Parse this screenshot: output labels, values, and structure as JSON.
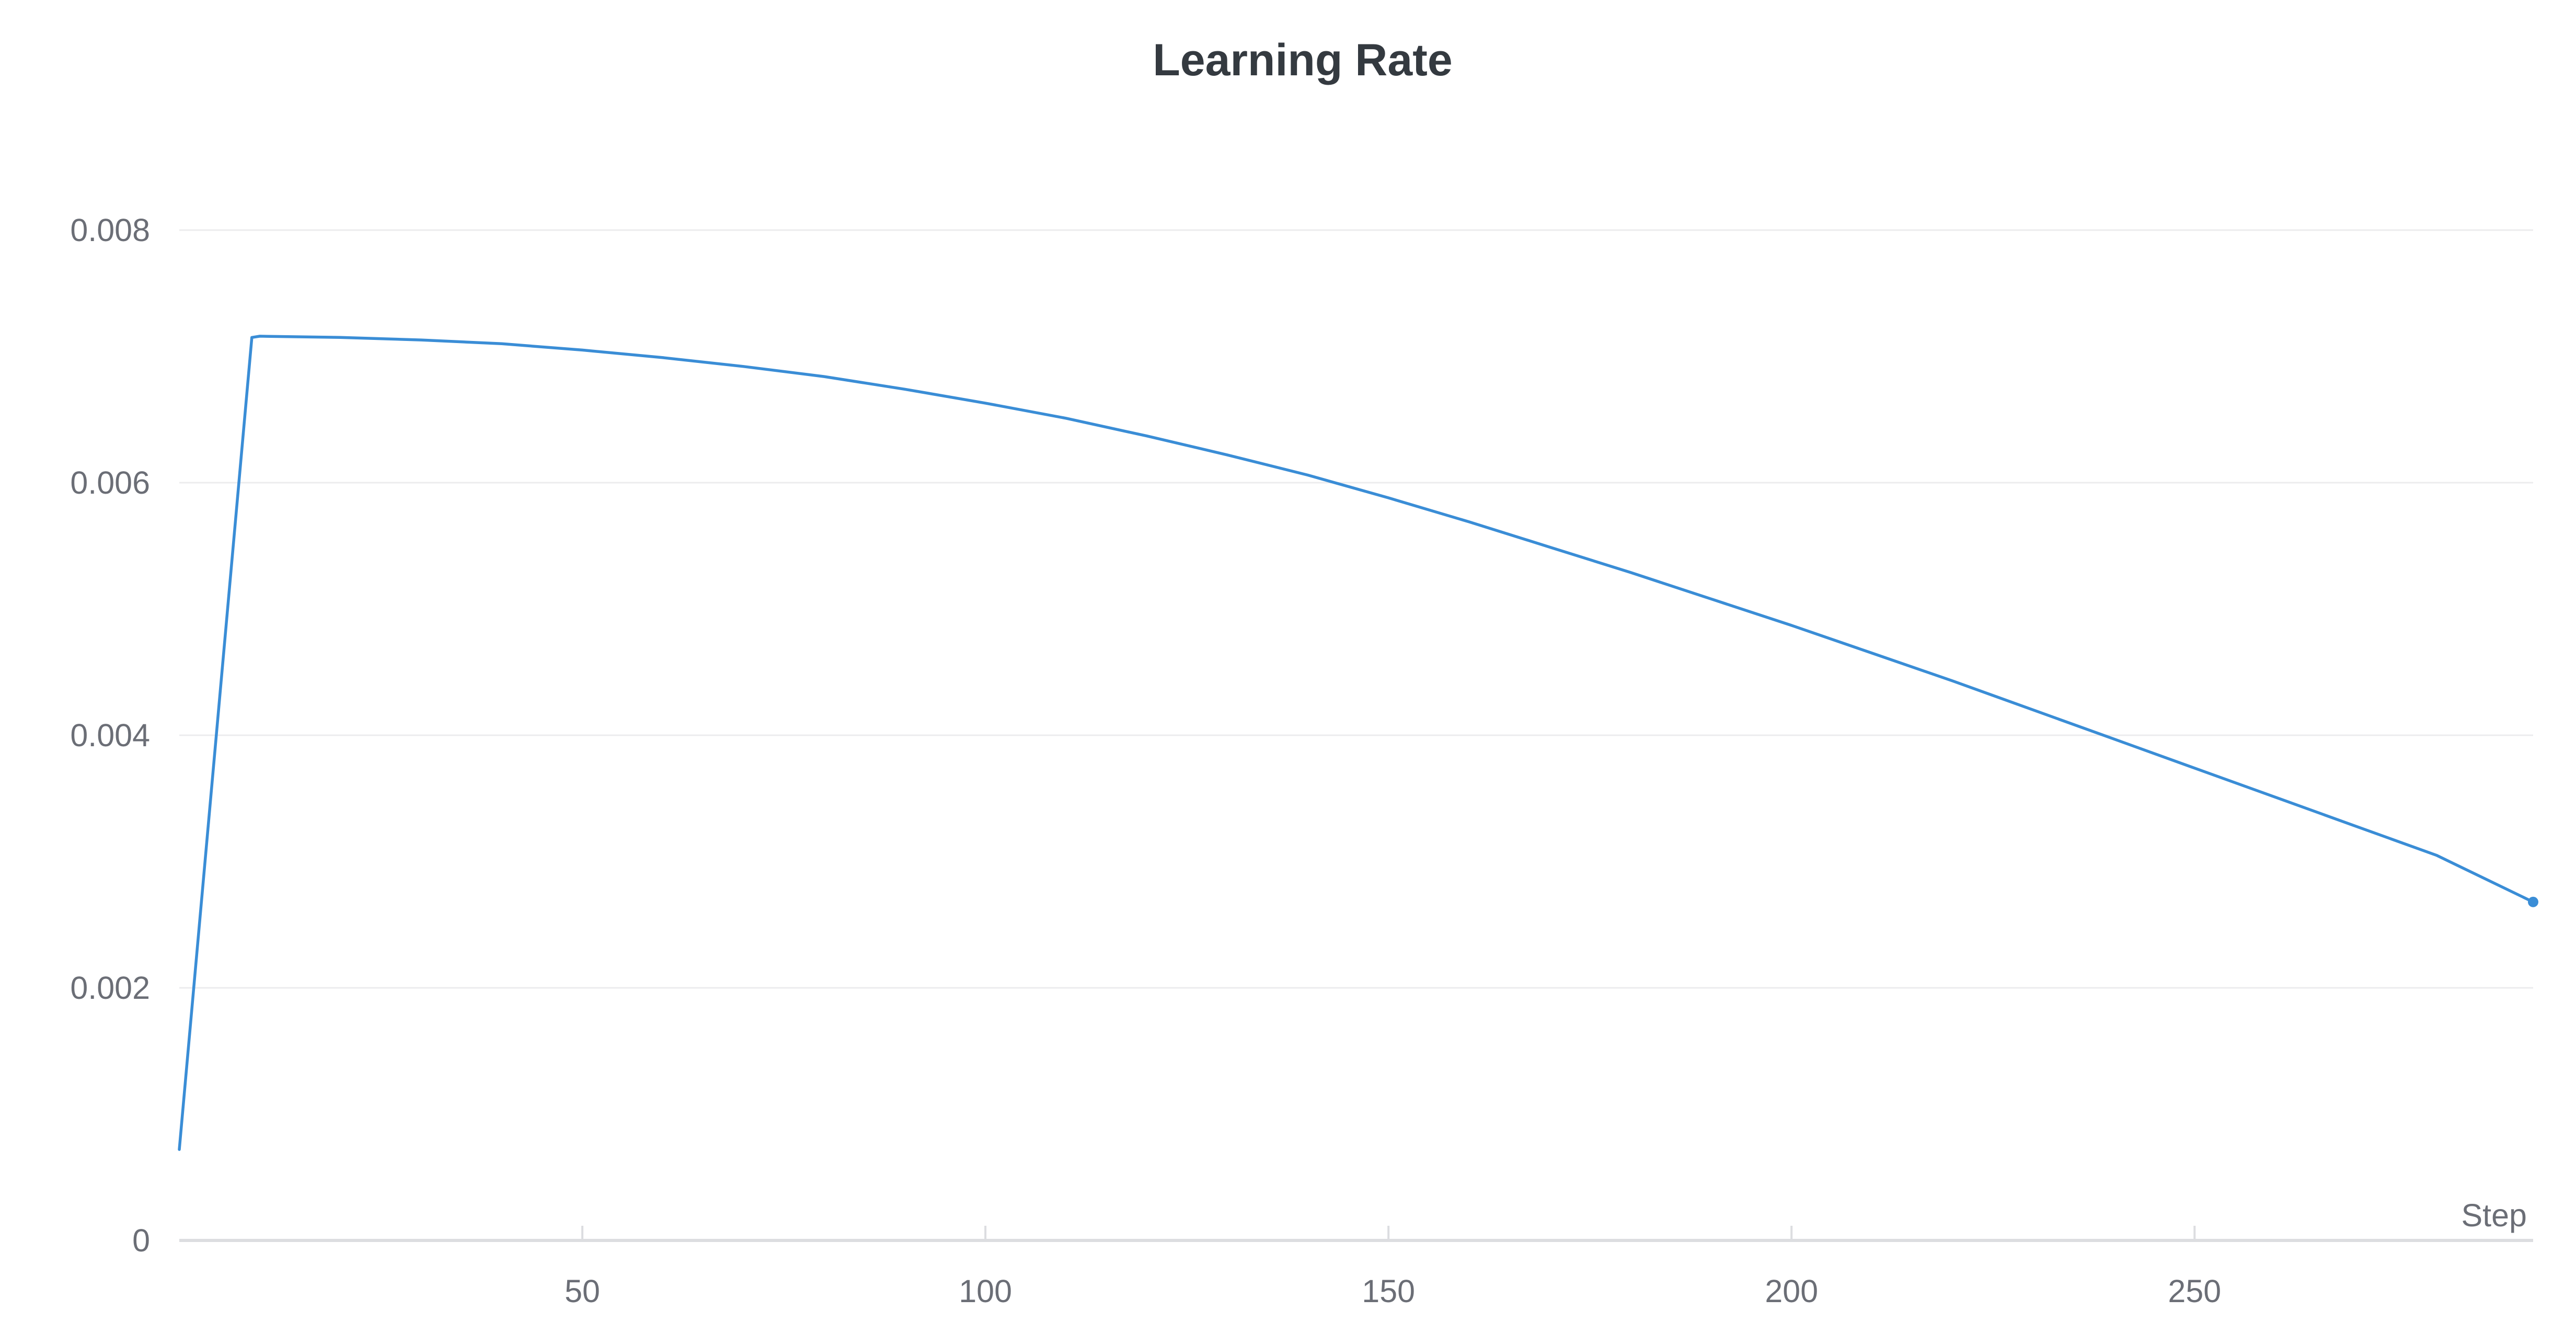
{
  "chart_data": {
    "type": "line",
    "title": "Learning Rate",
    "xlabel": "Step",
    "ylabel": "",
    "xlim": [
      0,
      292
    ],
    "ylim": [
      0,
      0.008
    ],
    "x_ticks": [
      50,
      100,
      150,
      200,
      250
    ],
    "x_tick_labels": [
      "50",
      "100",
      "150",
      "200",
      "250"
    ],
    "y_ticks": [
      0,
      0.002,
      0.004,
      0.006,
      0.008
    ],
    "y_tick_labels": [
      "0",
      "0.002",
      "0.004",
      "0.006",
      "0.008"
    ],
    "grid": true,
    "legend": "none",
    "colors": {
      "series": "#3a8dd6",
      "title": "#343a40",
      "text": "#6b6e76",
      "grid": "#ececee",
      "axis": "#dcdde0"
    },
    "series": [
      {
        "x": [
          0,
          9,
          10,
          20,
          30,
          40,
          50,
          60,
          70,
          80,
          90,
          100,
          110,
          120,
          130,
          140,
          150,
          160,
          170,
          180,
          190,
          200,
          210,
          220,
          230,
          240,
          250,
          260,
          270,
          280,
          292
        ],
        "y": [
          0.00072,
          0.00715,
          0.00716,
          0.00715,
          0.00713,
          0.0071,
          0.00705,
          0.00699,
          0.00692,
          0.00684,
          0.00674,
          0.00663,
          0.00651,
          0.00637,
          0.00622,
          0.00606,
          0.00588,
          0.00569,
          0.00549,
          0.00529,
          0.00508,
          0.00487,
          0.00465,
          0.00443,
          0.0042,
          0.00397,
          0.00374,
          0.00351,
          0.00328,
          0.00305,
          0.00268
        ],
        "end_marker": true
      }
    ]
  }
}
